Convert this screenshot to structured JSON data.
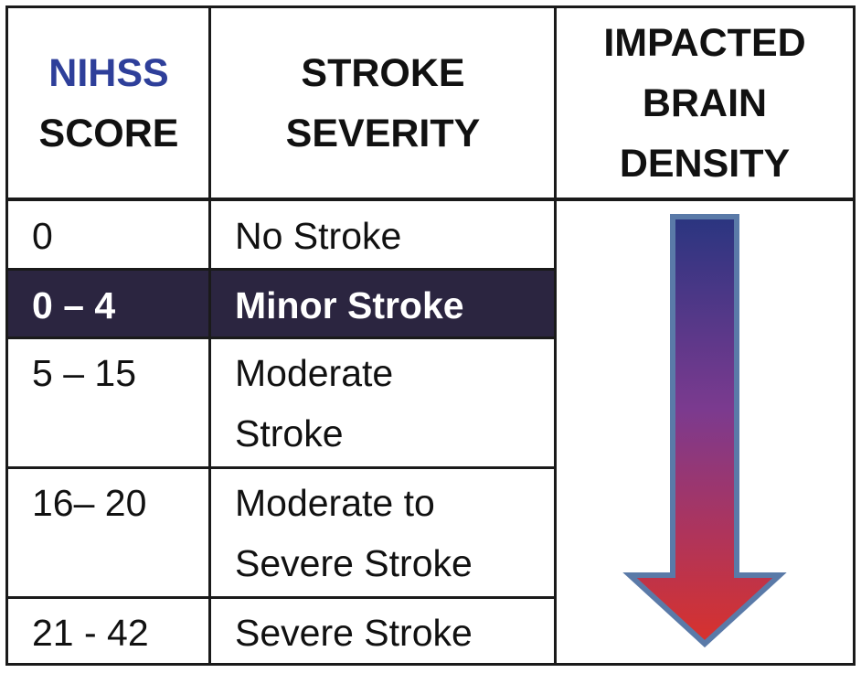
{
  "header": {
    "score_line1": "NIHSS",
    "score_line2": "SCORE",
    "severity_line1": "STROKE",
    "severity_line2": "SEVERITY",
    "density_line1": "IMPACTED",
    "density_line2": "BRAIN",
    "density_line3": "DENSITY"
  },
  "rows": [
    {
      "score": "0",
      "severity": [
        "No Stroke"
      ]
    },
    {
      "score": "0 – 4",
      "severity": [
        "Minor Stroke"
      ],
      "highlighted": true
    },
    {
      "score": "5 – 15",
      "severity": [
        "Moderate",
        "Stroke"
      ]
    },
    {
      "score": "16– 20",
      "severity": [
        "Moderate to",
        "Severe Stroke"
      ]
    },
    {
      "score": "21 - 42",
      "severity": [
        "Severe Stroke"
      ]
    }
  ],
  "colors": {
    "nihss_blue": "#2e3f9a",
    "highlight_row": "#2b2540",
    "arrow_top": "#2a3580",
    "arrow_mid": "#8a3a8c",
    "arrow_bottom": "#d8322c",
    "arrow_outline": "#5a7aa8"
  },
  "icons": {
    "density_arrow": "down-arrow-gradient"
  }
}
